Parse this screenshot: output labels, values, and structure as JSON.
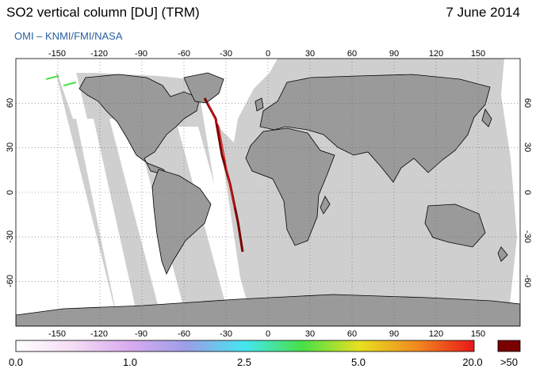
{
  "header": {
    "title": "SO2 vertical column [DU] (TRM)",
    "date": "7 June 2014",
    "credit": "OMI  –  KNMI/FMI/NASA"
  },
  "map": {
    "projection": "equirectangular",
    "lon_ticks_top": [
      "-150",
      "-120",
      "-90",
      "-60",
      "-30",
      "0",
      "30",
      "60",
      "90",
      "120",
      "150"
    ],
    "lon_ticks_bottom": [
      "-150",
      "-120",
      "-90",
      "-60",
      "-30",
      "0",
      "30",
      "60",
      "90",
      "120",
      "150"
    ],
    "lat_ticks": [
      "60",
      "30",
      "0",
      "-30",
      "-60"
    ],
    "colors": {
      "land": "#9a9a9a",
      "background_swath": "#cfcfcf",
      "no_data_gap": "#ffffff",
      "coastline": "#000000"
    }
  },
  "colorbar": {
    "labels": [
      "0.0",
      "1.0",
      "2.5",
      "5.0",
      "20.0",
      ">50"
    ],
    "stops": [
      "#ffffff",
      "#f4dcf4",
      "#d9aaf0",
      "#9a9ee8",
      "#45e6f0",
      "#48e048",
      "#e8e020",
      "#f08a20",
      "#e81818",
      "#7a0000"
    ]
  }
}
